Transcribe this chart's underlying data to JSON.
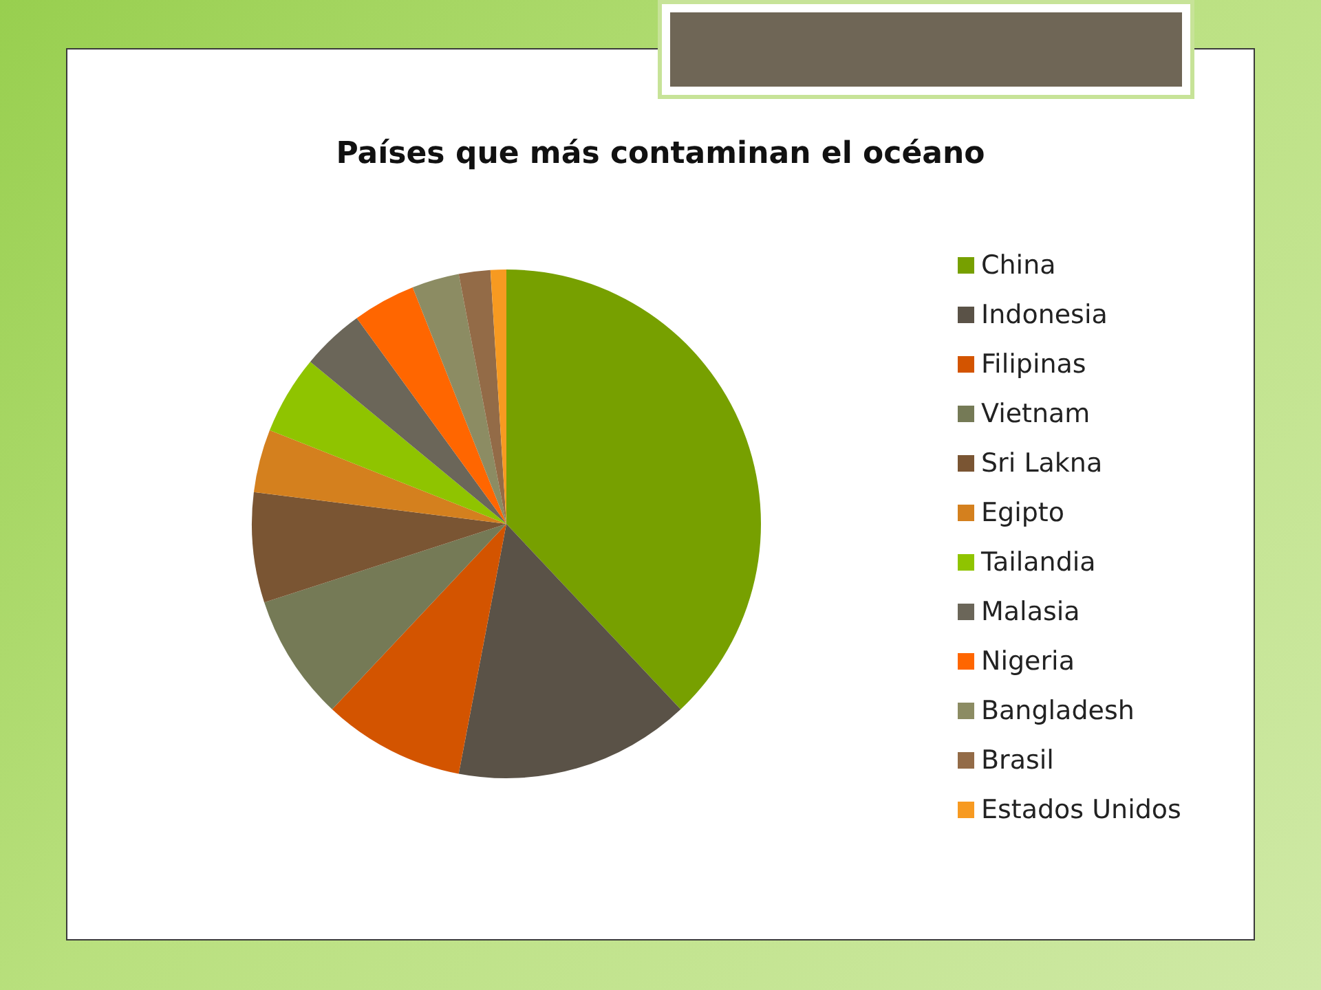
{
  "chart_data": {
    "type": "pie",
    "title": "Países que más contaminan el océano",
    "categories": [
      "China",
      "Indonesia",
      "Filipinas",
      "Vietnam",
      "Sri Lakna",
      "Egipto",
      "Tailandia",
      "Malasia",
      "Nigeria",
      "Bangladesh",
      "Brasil",
      "Estados Unidos"
    ],
    "values": [
      38,
      15,
      9,
      8,
      7,
      4,
      5,
      4,
      4,
      3,
      2,
      1
    ],
    "colors": [
      "#77a000",
      "#5a5247",
      "#d35400",
      "#757a56",
      "#7a5533",
      "#d4801e",
      "#8fc400",
      "#6b6659",
      "#ff6600",
      "#8c8c63",
      "#936b47",
      "#f79a21"
    ],
    "legend": "right"
  }
}
